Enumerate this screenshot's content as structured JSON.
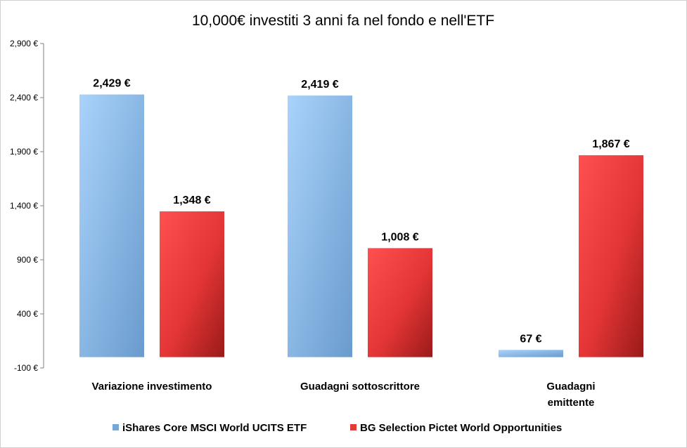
{
  "chart_data": {
    "type": "bar",
    "title": "10,000€ investiti 3 anni fa nel fondo e nell'ETF",
    "categories": [
      [
        "Variazione investimento"
      ],
      [
        "Guadagni sottoscrittore"
      ],
      [
        "Guadagni",
        "emittente"
      ]
    ],
    "series": [
      {
        "name": "iShares Core MSCI World UCITS ETF",
        "values": [
          2429,
          2419,
          67
        ],
        "labels": [
          "2,429 €",
          "2,419 €",
          "67 €"
        ],
        "color_light": "#9fcbf6",
        "color_dark": "#6fa0d2",
        "legend_color": "#7aa6d6"
      },
      {
        "name": "BG Selection Pictet World Opportunities",
        "values": [
          1348,
          1008,
          1867
        ],
        "labels": [
          "1,348 €",
          "1,008 €",
          "1,867 €"
        ],
        "color_light": "#ff4d4d",
        "color_dark": "#a01c1c",
        "legend_color": "#e03a3a"
      }
    ],
    "ylim": [
      -100,
      2900
    ],
    "yticks": [
      -100,
      400,
      900,
      1400,
      1900,
      2400,
      2900
    ],
    "ytick_labels": [
      "-100 €",
      "400 €",
      "900 €",
      "1,400 €",
      "1,900 €",
      "2,400 €",
      "2,900 €"
    ],
    "grid": false,
    "legend_position": "bottom",
    "xlabel": "",
    "ylabel": ""
  }
}
